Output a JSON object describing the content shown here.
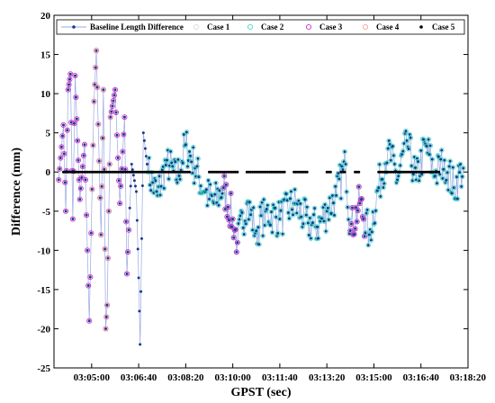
{
  "chart_data": {
    "type": "scatter",
    "xlabel": "GPST (sec)",
    "ylabel": "Difference (mm)",
    "ylim": [
      -25,
      20
    ],
    "xlim": [
      "03:03:40",
      "03:18:20"
    ],
    "x_ticks": [
      "03:05:00",
      "03:06:40",
      "03:08:20",
      "03:10:00",
      "03:11:40",
      "03:13:20",
      "03:15:00",
      "03:16:40",
      "03:18:20"
    ],
    "y_ticks": [
      "-25",
      "-20",
      "-15",
      "-10",
      "-5",
      "0",
      "5",
      "10",
      "15",
      "20"
    ],
    "grid": false,
    "legend_position": "top",
    "series": [
      {
        "name": "Baseline Length Difference",
        "style": "line-with-dots",
        "color": "#1a3a8c",
        "line_color": "#9aa8e0",
        "anchors": [
          {
            "t": "03:03:50",
            "v": -1.0
          },
          {
            "t": "03:04:00",
            "v": 6.0
          },
          {
            "t": "03:04:05",
            "v": -5.0
          },
          {
            "t": "03:04:10",
            "v": 10.5
          },
          {
            "t": "03:04:15",
            "v": 12.5
          },
          {
            "t": "03:04:20",
            "v": -6.0
          },
          {
            "t": "03:04:25",
            "v": 12.3
          },
          {
            "t": "03:04:30",
            "v": 4.0
          },
          {
            "t": "03:04:35",
            "v": -3.5
          },
          {
            "t": "03:04:45",
            "v": 3.5
          },
          {
            "t": "03:04:55",
            "v": -19.0
          },
          {
            "t": "03:05:05",
            "v": 9.0
          },
          {
            "t": "03:05:10",
            "v": 15.5
          },
          {
            "t": "03:05:20",
            "v": -8.0
          },
          {
            "t": "03:05:25",
            "v": 10.5
          },
          {
            "t": "03:05:30",
            "v": -20.0
          },
          {
            "t": "03:05:33",
            "v": -17.0
          },
          {
            "t": "03:05:40",
            "v": 7.0
          },
          {
            "t": "03:05:50",
            "v": 10.5
          },
          {
            "t": "03:06:00",
            "v": -4.0
          },
          {
            "t": "03:06:10",
            "v": 7.0
          },
          {
            "t": "03:06:15",
            "v": -13.0
          },
          {
            "t": "03:06:25",
            "v": 1.0
          },
          {
            "t": "03:06:35",
            "v": -2.5
          },
          {
            "t": "03:06:40",
            "v": -13.5
          },
          {
            "t": "03:06:43",
            "v": -22.0
          },
          {
            "t": "03:06:50",
            "v": 5.0
          },
          {
            "t": "03:07:00",
            "v": 0.0
          },
          {
            "t": "03:07:20",
            "v": -3.0
          },
          {
            "t": "03:07:40",
            "v": 1.5
          },
          {
            "t": "03:08:00",
            "v": -1.0
          },
          {
            "t": "03:08:20",
            "v": 3.5
          },
          {
            "t": "03:08:40",
            "v": 0.5
          },
          {
            "t": "03:09:00",
            "v": -2.5
          },
          {
            "t": "03:09:20",
            "v": -4.0
          },
          {
            "t": "03:09:40",
            "v": -2.0
          },
          {
            "t": "03:10:00",
            "v": -6.0
          },
          {
            "t": "03:10:10",
            "v": -9.0
          },
          {
            "t": "03:10:30",
            "v": -4.0
          },
          {
            "t": "03:10:50",
            "v": -7.5
          },
          {
            "t": "03:11:10",
            "v": -5.0
          },
          {
            "t": "03:11:40",
            "v": -6.0
          },
          {
            "t": "03:12:10",
            "v": -4.0
          },
          {
            "t": "03:12:40",
            "v": -6.5
          },
          {
            "t": "03:13:00",
            "v": -7.0
          },
          {
            "t": "03:13:20",
            "v": -5.0
          },
          {
            "t": "03:13:40",
            "v": -3.0
          },
          {
            "t": "03:14:00",
            "v": 1.0
          },
          {
            "t": "03:14:10",
            "v": -7.5
          },
          {
            "t": "03:14:30",
            "v": -4.0
          },
          {
            "t": "03:14:50",
            "v": -8.0
          },
          {
            "t": "03:15:10",
            "v": -2.0
          },
          {
            "t": "03:15:30",
            "v": 3.0
          },
          {
            "t": "03:15:50",
            "v": -1.0
          },
          {
            "t": "03:16:10",
            "v": 4.0
          },
          {
            "t": "03:16:30",
            "v": -1.0
          },
          {
            "t": "03:16:50",
            "v": 3.5
          },
          {
            "t": "03:17:10",
            "v": -0.5
          },
          {
            "t": "03:17:30",
            "v": 1.5
          },
          {
            "t": "03:17:50",
            "v": -2.0
          },
          {
            "t": "03:18:10",
            "v": 0.5
          }
        ]
      },
      {
        "name": "Case 1",
        "style": "open-circle",
        "color": "#d9d9d9"
      },
      {
        "name": "Case 2",
        "style": "open-circle",
        "color": "#3fd9c9",
        "ranges": [
          [
            "03:07:00",
            "03:18:20"
          ]
        ]
      },
      {
        "name": "Case 3",
        "style": "open-circle",
        "color": "#cc33cc",
        "ranges": [
          [
            "03:03:40",
            "03:06:20"
          ],
          [
            "03:09:40",
            "03:10:10"
          ],
          [
            "03:14:10",
            "03:14:40"
          ]
        ]
      },
      {
        "name": "Case 4",
        "style": "open-circle",
        "color": "#f0a0a0",
        "ranges": [
          [
            "03:05:00",
            "03:05:40"
          ]
        ]
      },
      {
        "name": "Case 5",
        "style": "dot",
        "color": "#000000",
        "value": 0,
        "ranges": [
          [
            "03:04:00",
            "03:08:30"
          ],
          [
            "03:09:10",
            "03:10:10"
          ],
          [
            "03:10:30",
            "03:11:50"
          ],
          [
            "03:12:10",
            "03:12:40"
          ],
          [
            "03:13:20",
            "03:13:30"
          ],
          [
            "03:13:50",
            "03:14:00"
          ],
          [
            "03:14:20",
            "03:14:30"
          ],
          [
            "03:15:10",
            "03:17:20"
          ]
        ]
      }
    ]
  }
}
